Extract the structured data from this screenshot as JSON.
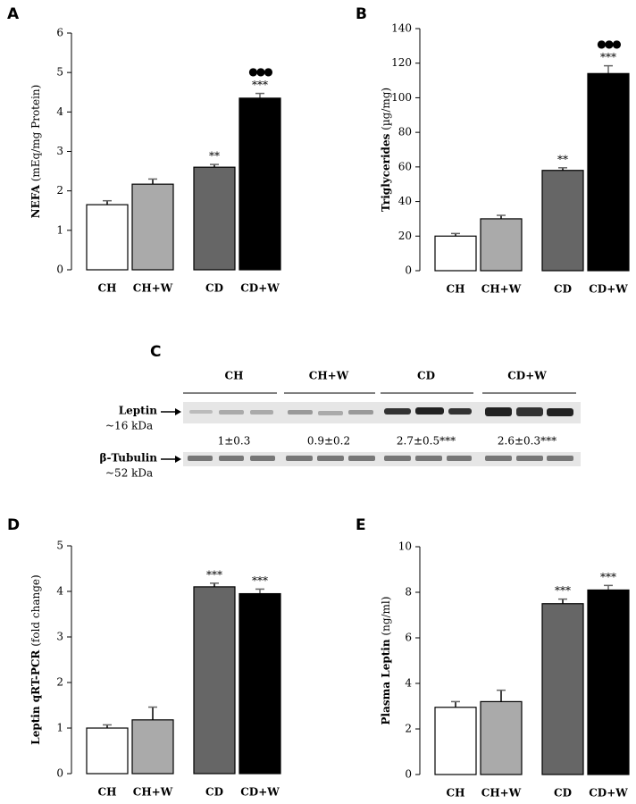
{
  "chart_data": [
    {
      "type": "bar",
      "panel": "A",
      "ylabel": "NEFA",
      "yunit": "(mEq/mg Protein)",
      "categories": [
        "CH",
        "CH+W",
        "CD",
        "CD+W"
      ],
      "values": [
        1.65,
        2.17,
        2.6,
        4.35
      ],
      "errors": [
        0.1,
        0.13,
        0.07,
        0.12
      ],
      "colors": [
        "#ffffff",
        "#aaaaaa",
        "#666666",
        "#000000"
      ],
      "annotations": [
        null,
        null,
        "**",
        "***"
      ],
      "annotations_top": [
        null,
        null,
        null,
        "●●●"
      ],
      "ylim": [
        0,
        6
      ],
      "yticks": [
        0,
        1,
        2,
        3,
        4,
        5,
        6
      ]
    },
    {
      "type": "bar",
      "panel": "B",
      "ylabel": "Triglycerides",
      "yunit": "(µg/mg)",
      "categories": [
        "CH",
        "CH+W",
        "CD",
        "CD+W"
      ],
      "values": [
        20,
        30,
        58,
        114
      ],
      "errors": [
        1.5,
        2,
        1.5,
        4.5
      ],
      "colors": [
        "#ffffff",
        "#aaaaaa",
        "#666666",
        "#000000"
      ],
      "annotations": [
        null,
        null,
        "**",
        "***"
      ],
      "annotations_top": [
        null,
        null,
        null,
        "●●●"
      ],
      "ylim": [
        0,
        140
      ],
      "yticks": [
        0,
        20,
        40,
        60,
        80,
        100,
        120,
        140
      ]
    },
    {
      "type": "blot",
      "panel": "C",
      "groups": [
        "CH",
        "CH+W",
        "CD",
        "CD+W"
      ],
      "row_labels": [
        "Leptin",
        "β-Tubulin"
      ],
      "row_sizes": [
        "~16 kDa",
        "~52 kDa"
      ],
      "quantification": [
        "1±0.3",
        "0.9±0.2",
        "2.7±0.5***",
        "2.6±0.3***"
      ]
    },
    {
      "type": "bar",
      "panel": "D",
      "ylabel": "Leptin qRT-PCR",
      "yunit": "(fold change)",
      "categories": [
        "CH",
        "CH+W",
        "CD",
        "CD+W"
      ],
      "values": [
        1.0,
        1.18,
        4.1,
        3.95
      ],
      "errors": [
        0.07,
        0.28,
        0.08,
        0.1
      ],
      "colors": [
        "#ffffff",
        "#aaaaaa",
        "#666666",
        "#000000"
      ],
      "annotations": [
        null,
        null,
        "***",
        "***"
      ],
      "ylim": [
        0,
        5
      ],
      "yticks": [
        0,
        1,
        2,
        3,
        4,
        5
      ]
    },
    {
      "type": "bar",
      "panel": "E",
      "ylabel": "Plasma Leptin",
      "yunit": "(ng/ml)",
      "categories": [
        "CH",
        "CH+W",
        "CD",
        "CD+W"
      ],
      "values": [
        2.95,
        3.2,
        7.5,
        8.1
      ],
      "errors": [
        0.25,
        0.5,
        0.2,
        0.2
      ],
      "colors": [
        "#ffffff",
        "#aaaaaa",
        "#666666",
        "#000000"
      ],
      "annotations": [
        null,
        null,
        "***",
        "***"
      ],
      "ylim": [
        0,
        10
      ],
      "yticks": [
        0,
        2,
        4,
        6,
        8,
        10
      ]
    }
  ]
}
